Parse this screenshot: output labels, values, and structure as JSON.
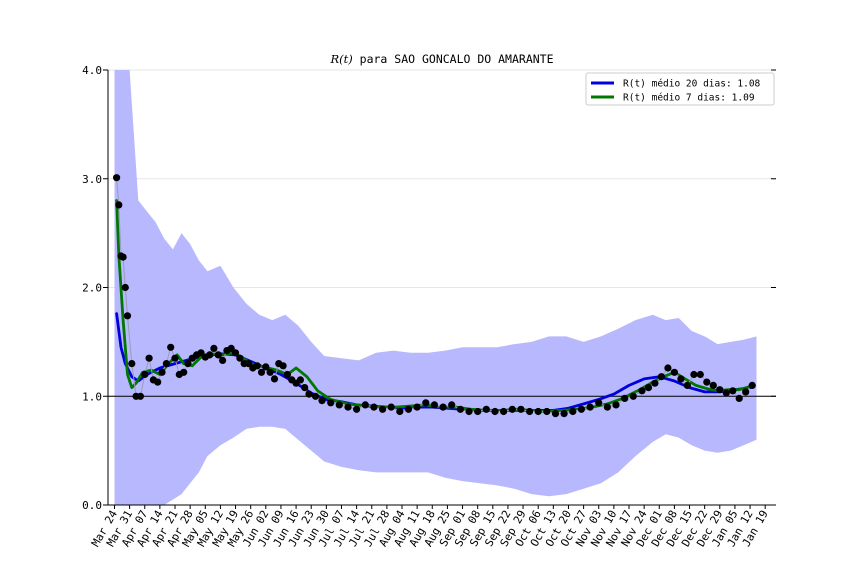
{
  "chart_data": {
    "type": "line",
    "title_italic": "R(t)",
    "title_rest": " para SAO GONCALO DO AMARANTE",
    "xlabel": "",
    "ylabel": "",
    "ylim": [
      0,
      4
    ],
    "yticks": [
      0,
      1,
      2,
      3,
      4
    ],
    "ytick_labels": [
      "0.0",
      "1.0",
      "2.0",
      "3.0",
      "4.0"
    ],
    "xlim": [
      "2020-03-21",
      "2021-01-24"
    ],
    "xtick_dates": [
      "2020-03-24",
      "2020-03-31",
      "2020-04-07",
      "2020-04-14",
      "2020-04-21",
      "2020-04-28",
      "2020-05-05",
      "2020-05-12",
      "2020-05-19",
      "2020-05-26",
      "2020-06-02",
      "2020-06-09",
      "2020-06-16",
      "2020-06-23",
      "2020-06-30",
      "2020-07-07",
      "2020-07-14",
      "2020-07-21",
      "2020-07-28",
      "2020-08-04",
      "2020-08-11",
      "2020-08-18",
      "2020-08-25",
      "2020-09-01",
      "2020-09-08",
      "2020-09-15",
      "2020-09-22",
      "2020-09-29",
      "2020-10-06",
      "2020-10-13",
      "2020-10-20",
      "2020-10-27",
      "2020-11-03",
      "2020-11-10",
      "2020-11-17",
      "2020-11-24",
      "2020-12-01",
      "2020-12-08",
      "2020-12-15",
      "2020-12-22",
      "2020-12-29",
      "2021-01-05",
      "2021-01-12",
      "2021-01-19"
    ],
    "xtick_labels": [
      "Mar 24",
      "Mar 31",
      "Apr 07",
      "Apr 14",
      "Apr 21",
      "Apr 28",
      "May 05",
      "May 12",
      "May 19",
      "May 26",
      "Jun 02",
      "Jun 09",
      "Jun 16",
      "Jun 23",
      "Jun 30",
      "Jul 07",
      "Jul 14",
      "Jul 21",
      "Jul 28",
      "Aug 04",
      "Aug 11",
      "Aug 18",
      "Aug 25",
      "Sep 01",
      "Sep 08",
      "Sep 15",
      "Sep 22",
      "Sep 29",
      "Oct 06",
      "Oct 13",
      "Oct 20",
      "Oct 27",
      "Nov 03",
      "Nov 10",
      "Nov 17",
      "Nov 24",
      "Dec 01",
      "Dec 08",
      "Dec 15",
      "Dec 22",
      "Dec 29",
      "Jan 05",
      "Jan 12",
      "Jan 19"
    ],
    "reference_line_y": 1.0,
    "grid": "horizontal",
    "legend_placement": "top-right",
    "colors": {
      "ci_band": "#b8b8ff",
      "points": "#000000",
      "mean20": "#0000dd",
      "mean7": "#007700",
      "grid": "#e6e6e6"
    },
    "series": [
      {
        "name": "R(t) médio 20 dias: 1.08",
        "kind": "line",
        "color": "#0000dd",
        "x": [
          "2020-03-25",
          "2020-03-27",
          "2020-03-29",
          "2020-04-01",
          "2020-04-04",
          "2020-04-08",
          "2020-04-14",
          "2020-04-21",
          "2020-04-28",
          "2020-05-05",
          "2020-05-12",
          "2020-05-19",
          "2020-05-26",
          "2020-06-02",
          "2020-06-09",
          "2020-06-16",
          "2020-06-23",
          "2020-06-30",
          "2020-07-07",
          "2020-07-14",
          "2020-07-21",
          "2020-07-28",
          "2020-08-04",
          "2020-08-11",
          "2020-08-18",
          "2020-08-25",
          "2020-09-01",
          "2020-09-08",
          "2020-09-15",
          "2020-09-22",
          "2020-09-29",
          "2020-10-06",
          "2020-10-13",
          "2020-10-20",
          "2020-10-27",
          "2020-11-03",
          "2020-11-10",
          "2020-11-17",
          "2020-11-24",
          "2020-12-01",
          "2020-12-08",
          "2020-12-15",
          "2020-12-22",
          "2020-12-29",
          "2021-01-05",
          "2021-01-12"
        ],
        "y": [
          1.76,
          1.45,
          1.3,
          1.18,
          1.14,
          1.2,
          1.26,
          1.3,
          1.34,
          1.37,
          1.39,
          1.38,
          1.32,
          1.26,
          1.2,
          1.12,
          1.03,
          0.97,
          0.95,
          0.92,
          0.91,
          0.9,
          0.89,
          0.9,
          0.9,
          0.89,
          0.88,
          0.87,
          0.87,
          0.87,
          0.87,
          0.87,
          0.87,
          0.89,
          0.93,
          0.97,
          1.02,
          1.1,
          1.16,
          1.18,
          1.14,
          1.08,
          1.04,
          1.04,
          1.06,
          1.08
        ]
      },
      {
        "name": "R(t) médio 7 dias: 1.09",
        "kind": "line",
        "color": "#007700",
        "x": [
          "2020-03-25",
          "2020-03-26",
          "2020-03-28",
          "2020-03-30",
          "2020-04-01",
          "2020-04-03",
          "2020-04-06",
          "2020-04-10",
          "2020-04-14",
          "2020-04-18",
          "2020-04-22",
          "2020-04-25",
          "2020-04-29",
          "2020-05-03",
          "2020-05-08",
          "2020-05-13",
          "2020-05-18",
          "2020-05-22",
          "2020-05-26",
          "2020-06-01",
          "2020-06-07",
          "2020-06-12",
          "2020-06-16",
          "2020-06-21",
          "2020-06-26",
          "2020-07-02",
          "2020-07-10",
          "2020-07-18",
          "2020-07-25",
          "2020-08-01",
          "2020-08-08",
          "2020-08-15",
          "2020-08-22",
          "2020-08-29",
          "2020-09-05",
          "2020-09-12",
          "2020-09-19",
          "2020-09-26",
          "2020-10-03",
          "2020-10-10",
          "2020-10-17",
          "2020-10-24",
          "2020-10-31",
          "2020-11-07",
          "2020-11-14",
          "2020-11-21",
          "2020-11-28",
          "2020-12-03",
          "2020-12-08",
          "2020-12-13",
          "2020-12-18",
          "2020-12-23",
          "2020-12-28",
          "2021-01-02",
          "2021-01-07",
          "2021-01-12"
        ],
        "y": [
          2.8,
          2.3,
          1.7,
          1.2,
          1.08,
          1.12,
          1.22,
          1.24,
          1.2,
          1.3,
          1.38,
          1.3,
          1.28,
          1.36,
          1.39,
          1.38,
          1.4,
          1.36,
          1.3,
          1.27,
          1.24,
          1.2,
          1.26,
          1.18,
          1.05,
          0.97,
          0.93,
          0.91,
          0.9,
          0.9,
          0.91,
          0.92,
          0.9,
          0.9,
          0.88,
          0.87,
          0.87,
          0.88,
          0.87,
          0.86,
          0.87,
          0.88,
          0.9,
          0.93,
          0.98,
          1.05,
          1.13,
          1.18,
          1.22,
          1.16,
          1.1,
          1.07,
          1.05,
          1.06,
          1.06,
          1.09
        ]
      },
      {
        "name": "",
        "kind": "points",
        "x": [
          "2020-03-25",
          "2020-03-26",
          "2020-03-27",
          "2020-03-28",
          "2020-03-29",
          "2020-03-30",
          "2020-04-01",
          "2020-04-03",
          "2020-04-05",
          "2020-04-07",
          "2020-04-09",
          "2020-04-11",
          "2020-04-13",
          "2020-04-15",
          "2020-04-17",
          "2020-04-19",
          "2020-04-21",
          "2020-04-23",
          "2020-04-25",
          "2020-04-27",
          "2020-04-29",
          "2020-05-01",
          "2020-05-03",
          "2020-05-05",
          "2020-05-07",
          "2020-05-09",
          "2020-05-11",
          "2020-05-13",
          "2020-05-15",
          "2020-05-17",
          "2020-05-19",
          "2020-05-21",
          "2020-05-23",
          "2020-05-25",
          "2020-05-27",
          "2020-05-29",
          "2020-05-31",
          "2020-06-02",
          "2020-06-04",
          "2020-06-06",
          "2020-06-08",
          "2020-06-10",
          "2020-06-12",
          "2020-06-14",
          "2020-06-16",
          "2020-06-18",
          "2020-06-20",
          "2020-06-22",
          "2020-06-25",
          "2020-06-28",
          "2020-07-02",
          "2020-07-06",
          "2020-07-10",
          "2020-07-14",
          "2020-07-18",
          "2020-07-22",
          "2020-07-26",
          "2020-07-30",
          "2020-08-03",
          "2020-08-07",
          "2020-08-11",
          "2020-08-15",
          "2020-08-19",
          "2020-08-23",
          "2020-08-27",
          "2020-08-31",
          "2020-09-04",
          "2020-09-08",
          "2020-09-12",
          "2020-09-16",
          "2020-09-20",
          "2020-09-24",
          "2020-09-28",
          "2020-10-02",
          "2020-10-06",
          "2020-10-10",
          "2020-10-14",
          "2020-10-18",
          "2020-10-22",
          "2020-10-26",
          "2020-10-30",
          "2020-11-03",
          "2020-11-07",
          "2020-11-11",
          "2020-11-15",
          "2020-11-19",
          "2020-11-23",
          "2020-11-26",
          "2020-11-29",
          "2020-12-02",
          "2020-12-05",
          "2020-12-08",
          "2020-12-11",
          "2020-12-14",
          "2020-12-17",
          "2020-12-20",
          "2020-12-23",
          "2020-12-26",
          "2020-12-29",
          "2021-01-01",
          "2021-01-04",
          "2021-01-07",
          "2021-01-10",
          "2021-01-13"
        ],
        "y": [
          3.01,
          2.76,
          2.29,
          2.28,
          2.0,
          1.74,
          1.3,
          1.0,
          1.0,
          1.2,
          1.35,
          1.15,
          1.13,
          1.22,
          1.3,
          1.45,
          1.35,
          1.2,
          1.22,
          1.3,
          1.35,
          1.38,
          1.4,
          1.36,
          1.38,
          1.44,
          1.38,
          1.33,
          1.42,
          1.44,
          1.4,
          1.35,
          1.3,
          1.3,
          1.26,
          1.28,
          1.22,
          1.27,
          1.22,
          1.16,
          1.3,
          1.28,
          1.2,
          1.15,
          1.12,
          1.15,
          1.08,
          1.02,
          1.0,
          0.96,
          0.94,
          0.92,
          0.9,
          0.88,
          0.92,
          0.9,
          0.88,
          0.9,
          0.86,
          0.88,
          0.9,
          0.94,
          0.92,
          0.9,
          0.92,
          0.88,
          0.86,
          0.86,
          0.88,
          0.86,
          0.86,
          0.88,
          0.88,
          0.86,
          0.86,
          0.86,
          0.84,
          0.84,
          0.86,
          0.88,
          0.9,
          0.94,
          0.9,
          0.92,
          0.98,
          1.0,
          1.05,
          1.08,
          1.12,
          1.18,
          1.26,
          1.22,
          1.16,
          1.1,
          1.2,
          1.2,
          1.13,
          1.1,
          1.06,
          1.03,
          1.05,
          0.98,
          1.04,
          1.1
        ]
      }
    ],
    "confidence_band": {
      "x": [
        "2020-03-24",
        "2020-03-27",
        "2020-03-31",
        "2020-04-04",
        "2020-04-08",
        "2020-04-12",
        "2020-04-16",
        "2020-04-20",
        "2020-04-24",
        "2020-04-28",
        "2020-05-02",
        "2020-05-06",
        "2020-05-12",
        "2020-05-18",
        "2020-05-24",
        "2020-05-30",
        "2020-06-05",
        "2020-06-11",
        "2020-06-17",
        "2020-06-23",
        "2020-06-29",
        "2020-07-07",
        "2020-07-15",
        "2020-07-23",
        "2020-07-31",
        "2020-08-08",
        "2020-08-16",
        "2020-08-24",
        "2020-09-01",
        "2020-09-09",
        "2020-09-17",
        "2020-09-25",
        "2020-10-03",
        "2020-10-11",
        "2020-10-19",
        "2020-10-27",
        "2020-11-04",
        "2020-11-12",
        "2020-11-20",
        "2020-11-28",
        "2020-12-04",
        "2020-12-10",
        "2020-12-16",
        "2020-12-22",
        "2020-12-28",
        "2021-01-03",
        "2021-01-09",
        "2021-01-15"
      ],
      "upper": [
        4.0,
        4.0,
        4.0,
        2.8,
        2.7,
        2.6,
        2.45,
        2.35,
        2.5,
        2.4,
        2.25,
        2.15,
        2.2,
        2.0,
        1.85,
        1.75,
        1.7,
        1.75,
        1.65,
        1.5,
        1.37,
        1.35,
        1.33,
        1.4,
        1.42,
        1.4,
        1.4,
        1.42,
        1.45,
        1.45,
        1.45,
        1.48,
        1.5,
        1.55,
        1.55,
        1.5,
        1.55,
        1.62,
        1.7,
        1.75,
        1.7,
        1.72,
        1.6,
        1.55,
        1.48,
        1.5,
        1.52,
        1.55
      ],
      "lower": [
        0.0,
        0.0,
        0.0,
        0.0,
        0.0,
        0.0,
        0.0,
        0.05,
        0.1,
        0.2,
        0.3,
        0.45,
        0.55,
        0.62,
        0.7,
        0.72,
        0.72,
        0.7,
        0.6,
        0.5,
        0.4,
        0.35,
        0.32,
        0.3,
        0.3,
        0.3,
        0.3,
        0.25,
        0.22,
        0.2,
        0.18,
        0.15,
        0.1,
        0.08,
        0.1,
        0.15,
        0.2,
        0.3,
        0.45,
        0.58,
        0.65,
        0.62,
        0.55,
        0.5,
        0.48,
        0.5,
        0.55,
        0.6
      ]
    }
  }
}
